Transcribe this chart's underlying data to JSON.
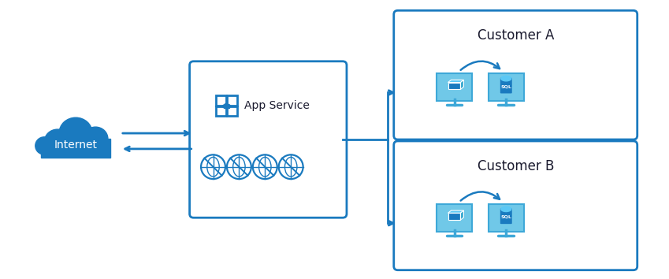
{
  "bg_color": "#ffffff",
  "arrow_color": "#1a7abf",
  "box_color": "#1a7abf",
  "box_face": "#ffffff",
  "cloud_color": "#1a7abf",
  "icon_light_blue": "#70c8e8",
  "icon_mid_blue": "#3ea8d8",
  "icon_dark_blue": "#1a7abf",
  "text_color": "#1a1a2e",
  "figsize": [
    8.49,
    3.54
  ],
  "dpi": 100,
  "internet_label": "Internet",
  "appservice_label": "App Service",
  "customer_a_label": "Customer A",
  "customer_b_label": "Customer B",
  "font_size_label": 10,
  "font_size_title": 12,
  "font_size_internet": 10
}
